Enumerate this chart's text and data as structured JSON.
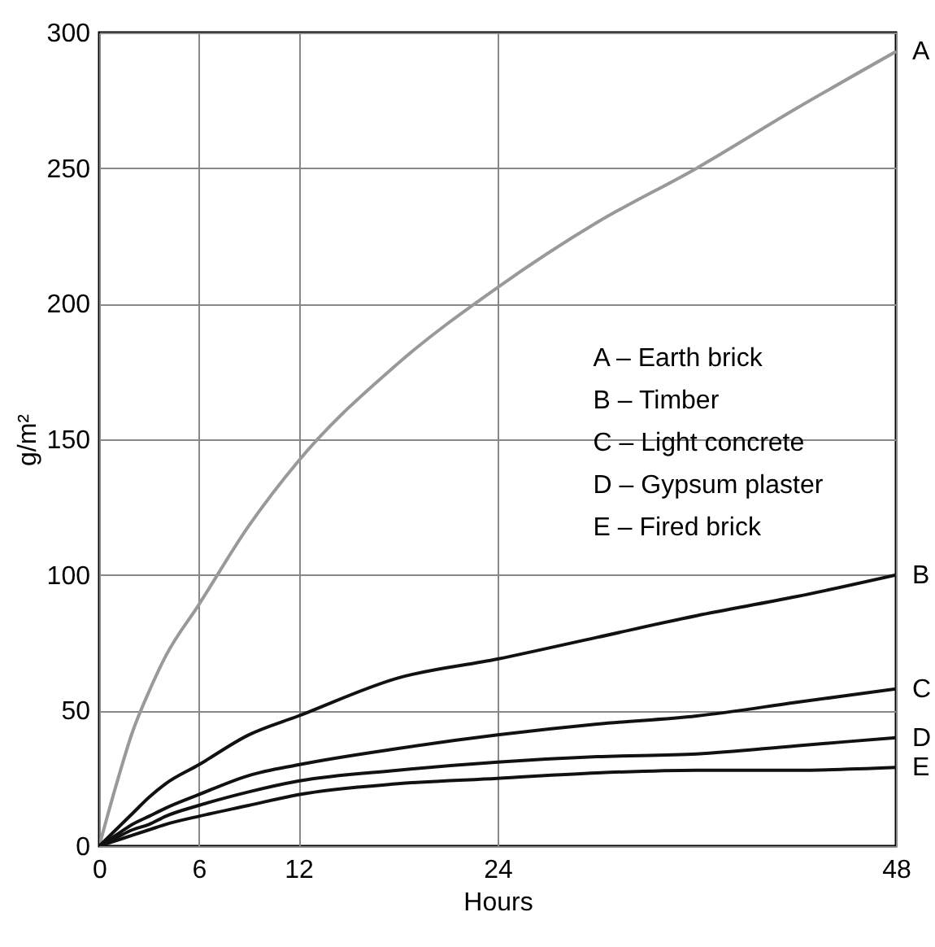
{
  "chart_data": {
    "type": "line",
    "xlabel": "Hours",
    "ylabel": "g/m²",
    "x": [
      0,
      1,
      2,
      3,
      4,
      6,
      9,
      12,
      18,
      24,
      30,
      36,
      42,
      48
    ],
    "series": [
      {
        "name": "A",
        "color": "#999999",
        "values": [
          0,
          22,
          42,
          57,
          70,
          89,
          118,
          142,
          178,
          206,
          230,
          250,
          272,
          293
        ]
      },
      {
        "name": "B",
        "color": "#111111",
        "values": [
          0,
          6,
          12,
          18,
          23,
          30,
          41,
          48,
          62,
          69,
          77,
          85,
          92,
          100
        ]
      },
      {
        "name": "C",
        "color": "#111111",
        "values": [
          0,
          4,
          8,
          11,
          14,
          19,
          26,
          30,
          36,
          41,
          45,
          48,
          53,
          58
        ]
      },
      {
        "name": "D",
        "color": "#111111",
        "values": [
          0,
          3,
          6,
          8,
          11,
          15,
          20,
          24,
          28,
          31,
          33,
          34,
          37,
          40
        ]
      },
      {
        "name": "E",
        "color": "#111111",
        "values": [
          0,
          2,
          4,
          6,
          8,
          11,
          15,
          19,
          23,
          25,
          27,
          28,
          28,
          29
        ]
      }
    ],
    "xlim": [
      0,
      48
    ],
    "ylim": [
      0,
      300
    ],
    "xticks": [
      0,
      6,
      12,
      24,
      48
    ],
    "yticks": [
      0,
      50,
      100,
      150,
      200,
      250,
      300
    ],
    "grid": true,
    "annotations": [
      "A – Earth brick",
      "B – Timber",
      "C – Light concrete",
      "D – Gypsum plaster",
      "E – Fired brick"
    ]
  }
}
